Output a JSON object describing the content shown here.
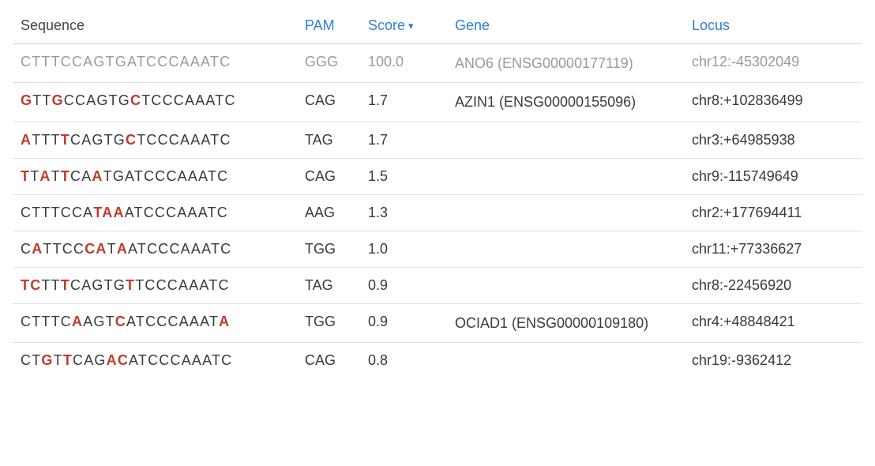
{
  "columns": {
    "sequence": {
      "label": "Sequence",
      "sortable": false
    },
    "pam": {
      "label": "PAM",
      "sortable": true
    },
    "score": {
      "label": "Score",
      "sortable": true,
      "sorted": "desc"
    },
    "gene": {
      "label": "Gene",
      "sortable": true
    },
    "locus": {
      "label": "Locus",
      "sortable": true
    }
  },
  "reference_sequence": "CTTTCCAGTGATCCCAAATC",
  "rows": [
    {
      "sequence": "CTTTCCAGTGATCCCAAATC",
      "pam": "GGG",
      "score": "100.0",
      "gene": "ANO6 (ENSG00000177119)",
      "locus": "chr12:-45302049",
      "is_reference": true
    },
    {
      "sequence": "GTTGCCAGTGCTCCCAAATC",
      "pam": "CAG",
      "score": "1.7",
      "gene": "AZIN1 (ENSG00000155096)",
      "locus": "chr8:+102836499",
      "is_reference": false
    },
    {
      "sequence": "ATTTTCAGTGCTCCCAAATC",
      "pam": "TAG",
      "score": "1.7",
      "gene": "",
      "locus": "chr3:+64985938",
      "is_reference": false
    },
    {
      "sequence": "TTATTCAATGATCCCAAATC",
      "pam": "CAG",
      "score": "1.5",
      "gene": "",
      "locus": "chr9:-115749649",
      "is_reference": false
    },
    {
      "sequence": "CTTTCCATAAATCCCAAATC",
      "pam": "AAG",
      "score": "1.3",
      "gene": "",
      "locus": "chr2:+177694411",
      "is_reference": false
    },
    {
      "sequence": "CATTCCCATAATCCCAAATC",
      "pam": "TGG",
      "score": "1.0",
      "gene": "",
      "locus": "chr11:+77336627",
      "is_reference": false
    },
    {
      "sequence": "TCTTTCAGTGTTCCCAAATC",
      "pam": "TAG",
      "score": "0.9",
      "gene": "",
      "locus": "chr8:-22456920",
      "is_reference": false
    },
    {
      "sequence": "CTTTCAAGTCATCCCAAATA",
      "pam": "TGG",
      "score": "0.9",
      "gene": "OCIAD1 (ENSG00000109180)",
      "locus": "chr4:+48848421",
      "is_reference": false
    },
    {
      "sequence": "CTGTTCAGACATCCCAAATC",
      "pam": "CAG",
      "score": "0.8",
      "gene": "",
      "locus": "chr19:-9362412",
      "is_reference": false
    }
  ],
  "colors": {
    "link": "#2f7fd1",
    "mismatch": "#c23a2b",
    "muted": "#9a9a9a",
    "text": "#3a3a3a",
    "border": "#e2e2e2"
  }
}
